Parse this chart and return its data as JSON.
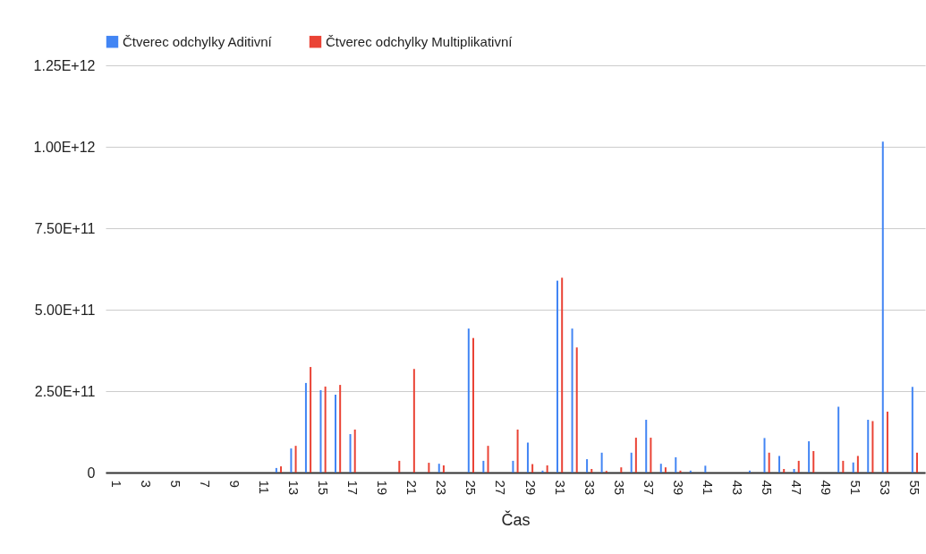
{
  "chart_data": {
    "type": "bar",
    "xlabel": "Čas",
    "categories": [
      "1",
      null,
      "3",
      null,
      "5",
      null,
      "7",
      null,
      "9",
      null,
      "11",
      null,
      "13",
      null,
      "15",
      null,
      "17",
      null,
      "19",
      null,
      "21",
      null,
      "23",
      null,
      "25",
      null,
      "27",
      null,
      "29",
      null,
      "31",
      null,
      "33",
      null,
      "35",
      null,
      "37",
      null,
      "39",
      null,
      "41",
      null,
      "43",
      null,
      "45",
      null,
      "47",
      null,
      "49",
      null,
      "51",
      null,
      "53",
      null,
      "55"
    ],
    "series": [
      {
        "name": "Čtverec odchylky Aditivní",
        "color": "#4285f4",
        "values": [
          0,
          0,
          0,
          0,
          0,
          0,
          0,
          0,
          0,
          0,
          0,
          14000000000.0,
          74000000000.0,
          275000000000.0,
          253000000000.0,
          239000000000.0,
          118000000000.0,
          0,
          0,
          0,
          0,
          0,
          27000000000.0,
          0,
          442000000000.0,
          36000000000.0,
          0,
          36000000000.0,
          92000000000.0,
          6000000000.0,
          589000000000.0,
          442000000000.0,
          41000000000.0,
          61000000000.0,
          0,
          61000000000.0,
          162000000000.0,
          27000000000.0,
          47000000000.0,
          6000000000.0,
          21000000000.0,
          0,
          0,
          6000000000.0,
          106000000000.0,
          51000000000.0,
          11000000000.0,
          96000000000.0,
          0,
          202000000000.0,
          31000000000.0,
          162000000000.0,
          1016000000000.0,
          0,
          263000000000.0
        ]
      },
      {
        "name": "Čtverec odchylky Multiplikativní",
        "color": "#ea4335",
        "values": [
          0,
          0,
          0,
          0,
          0,
          0,
          0,
          0,
          0,
          0,
          0,
          19000000000.0,
          82000000000.0,
          324000000000.0,
          264000000000.0,
          269000000000.0,
          132000000000.0,
          0,
          0,
          36000000000.0,
          318000000000.0,
          30000000000.0,
          22000000000.0,
          0,
          413000000000.0,
          82000000000.0,
          0,
          132000000000.0,
          26000000000.0,
          22000000000.0,
          598000000000.0,
          384000000000.0,
          11000000000.0,
          5000000000.0,
          16000000000.0,
          107000000000.0,
          107000000000.0,
          16000000000.0,
          6000000000.0,
          0,
          0,
          0,
          0,
          0,
          61000000000.0,
          11000000000.0,
          36000000000.0,
          66000000000.0,
          0,
          36000000000.0,
          51000000000.0,
          158000000000.0,
          187000000000.0,
          0,
          61000000000.0
        ]
      }
    ],
    "ylim": [
      0,
      1250000000000.0
    ],
    "yticks": [
      {
        "value": 0,
        "label": "0"
      },
      {
        "value": 250000000000.0,
        "label": "2.50E+11"
      },
      {
        "value": 500000000000.0,
        "label": "5.00E+11"
      },
      {
        "value": 750000000000.0,
        "label": "7.50E+11"
      },
      {
        "value": 1000000000000.0,
        "label": "1.00E+12"
      },
      {
        "value": 1250000000000.0,
        "label": "1.25E+12"
      }
    ],
    "grid": "y",
    "legend": "top"
  }
}
